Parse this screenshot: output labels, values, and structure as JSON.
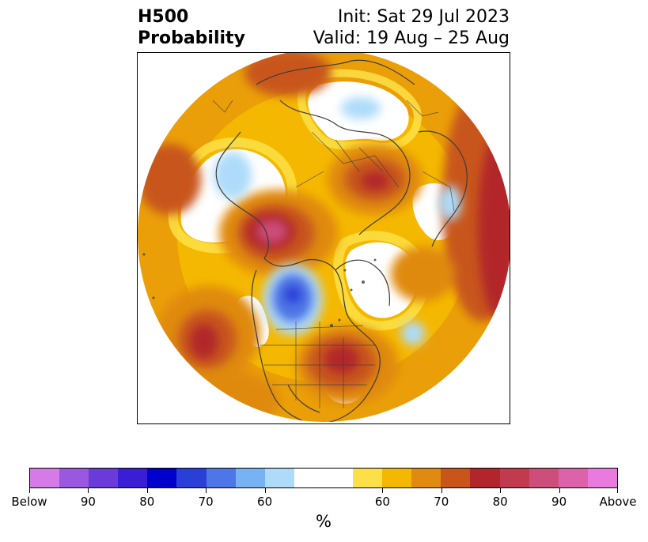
{
  "title": {
    "left_line1": "H500",
    "left_line2": "Probability",
    "right_line1": "Init: Sat 29 Jul 2023",
    "right_line2": "Valid: 19 Aug – 25 Aug"
  },
  "map": {
    "projection": "north-polar-stereographic",
    "variable": "500 hPa height probability",
    "features": [
      "strong-above-normal-centre-northwest-canada",
      "strong-above-normal-centre-eastern-united-states",
      "strong-above-normal-centre-north-pacific",
      "above-normal-band-north-atlantic",
      "below-normal-centre-northeast-pacific-off-bc",
      "below-normal-small-centres-arctic-and-atlantic"
    ]
  },
  "colorbar": {
    "tick_labels": [
      "Below",
      "90",
      "80",
      "70",
      "60",
      "60",
      "70",
      "80",
      "90",
      "Above"
    ],
    "units_label": "%",
    "below_colors": [
      "#d67ae8",
      "#9a57e0",
      "#6a3bd8",
      "#3a1ed6",
      "#0000cd",
      "#2a3ed8",
      "#4e76e6",
      "#76b2f4",
      "#aedbfa"
    ],
    "neutral_color": "#ffffff",
    "above_colors": [
      "#fde047",
      "#f5b800",
      "#e08a0f",
      "#c8561a",
      "#b2252a",
      "#c23a4e",
      "#cd4e7a",
      "#dc62aa",
      "#e97ade"
    ]
  }
}
